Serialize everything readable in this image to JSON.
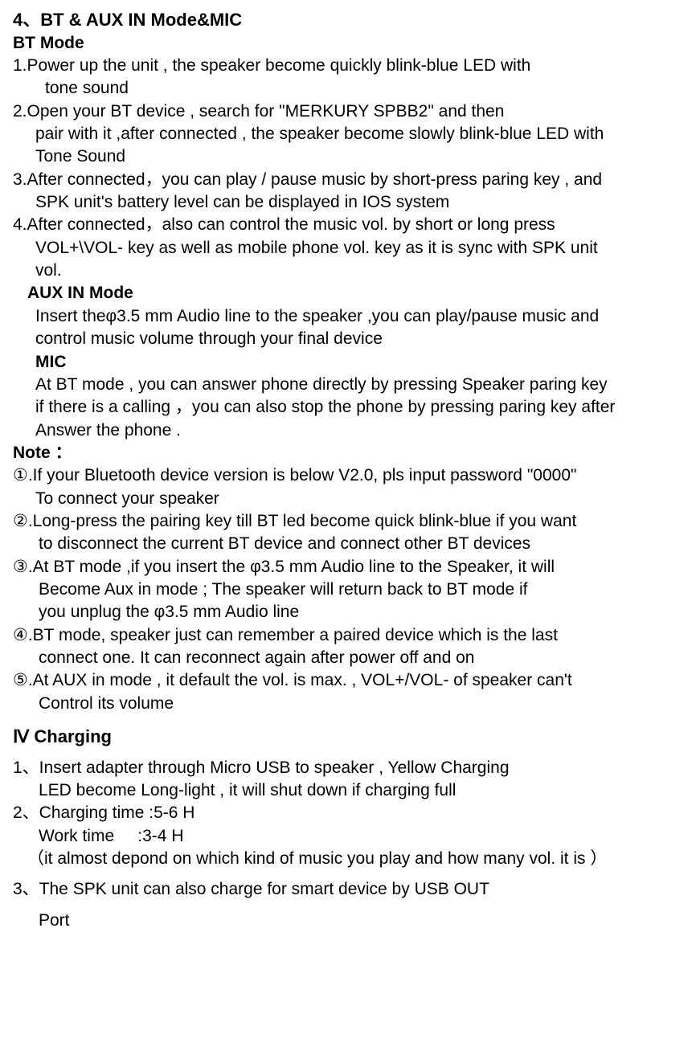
{
  "section4": {
    "title": "4、BT & AUX IN Mode&MIC",
    "btMode": {
      "heading": "BT Mode",
      "item1_line1": " 1.Power up the unit , the speaker become quickly blink-blue LED with",
      "item1_line2": "tone sound",
      "item2_line1": "2.Open your BT device , search for \"MERKURY SPBB2\" and then",
      "item2_line2": "pair with it ,after connected , the speaker become slowly blink-blue LED with",
      "item2_line3": "Tone Sound",
      "item3_line1": "3.After connected，you can play / pause music by short-press paring key , and",
      "item3_line2": "SPK unit's battery level can be displayed in IOS system",
      "item4_line1": "4.After connected，also can control the music vol. by short or long press",
      "item4_line2": "VOL+\\VOL- key as well as mobile phone vol. key as it is sync with SPK unit",
      "item4_line3": "vol."
    },
    "auxIn": {
      "heading": "AUX IN Mode",
      "line1": "Insert theφ3.5 mm Audio line to the speaker ,you can play/pause music and",
      "line2": "control music volume through your final device"
    },
    "mic": {
      "heading": "MIC",
      "line1": "At BT mode , you can answer phone directly by pressing Speaker paring key",
      "line2": "if there is a calling ，you can also stop the phone by pressing paring key after",
      "line3": "Answer the phone ."
    },
    "note": {
      "heading": "Note ：",
      "n1_line1": "①.If your Bluetooth device version is below V2.0, pls input password \"0000\"",
      "n1_line2": "To connect your speaker",
      "n2_line1": "②.Long-press the pairing key till BT led become quick blink-blue if you want",
      "n2_line2": "to disconnect the current BT device and connect other BT devices",
      "n3_line1": "③.At BT mode ,if you insert the φ3.5 mm Audio line to the Speaker, it will",
      "n3_line2": "Become Aux in mode ; The speaker will return back to BT mode if",
      "n3_line3": "you unplug the φ3.5 mm Audio line",
      "n4_line1": "④.BT mode, speaker just can remember a paired device which is the last",
      "n4_line2": "connect one. It can reconnect again after power off and on",
      "n5_line1": "⑤.At AUX in mode , it default the vol. is max. , VOL+/VOL- of speaker can't",
      "n5_line2": "Control its volume"
    }
  },
  "sectionCharging": {
    "title": "Ⅳ Charging",
    "item1_line1": "1、Insert adapter through Micro USB to speaker , Yellow Charging",
    "item1_line2": "LED become Long-light , it will shut down if charging full",
    "item2_line1": "2、Charging time :5-6 H",
    "item2_line2": "Work time     :3-4 H",
    "item2_line3": "（it almost depond on which kind of music you play and how many vol. it is ）",
    "item3_line1": "3、The SPK unit can also charge for smart device by USB OUT",
    "item3_line2": "Port"
  },
  "styling": {
    "bodyColor": "#000000",
    "backgroundColor": "#ffffff",
    "bodyFontSize": 21,
    "headingFontSize": 22,
    "fontFamily": "Arial, sans-serif"
  }
}
